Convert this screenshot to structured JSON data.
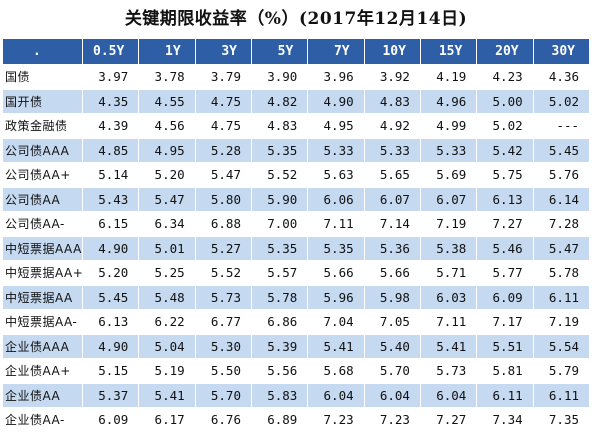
{
  "title": "关键期限收益率（%）(2017年12月14日)",
  "table": {
    "corner": ".",
    "headers": [
      "0.5Y",
      "1Y",
      "3Y",
      "5Y",
      "7Y",
      "10Y",
      "15Y",
      "20Y",
      "30Y"
    ],
    "rows": [
      {
        "name": "国债",
        "values": [
          "3.97",
          "3.78",
          "3.79",
          "3.90",
          "3.96",
          "3.92",
          "4.19",
          "4.23",
          "4.36"
        ]
      },
      {
        "name": "国开债",
        "values": [
          "4.35",
          "4.55",
          "4.75",
          "4.82",
          "4.90",
          "4.83",
          "4.96",
          "5.00",
          "5.02"
        ]
      },
      {
        "name": "政策金融债",
        "values": [
          "4.39",
          "4.56",
          "4.75",
          "4.83",
          "4.95",
          "4.92",
          "4.99",
          "5.02",
          "---"
        ]
      },
      {
        "name": "公司债AAA",
        "values": [
          "4.85",
          "4.95",
          "5.28",
          "5.35",
          "5.33",
          "5.33",
          "5.33",
          "5.42",
          "5.45"
        ]
      },
      {
        "name": "公司债AA+",
        "values": [
          "5.14",
          "5.20",
          "5.47",
          "5.52",
          "5.63",
          "5.65",
          "5.69",
          "5.75",
          "5.76"
        ]
      },
      {
        "name": "公司债AA",
        "values": [
          "5.43",
          "5.47",
          "5.80",
          "5.90",
          "6.06",
          "6.07",
          "6.07",
          "6.13",
          "6.14"
        ]
      },
      {
        "name": "公司债AA-",
        "values": [
          "6.15",
          "6.34",
          "6.88",
          "7.00",
          "7.11",
          "7.14",
          "7.19",
          "7.27",
          "7.28"
        ]
      },
      {
        "name": "中短票据AAA",
        "values": [
          "4.90",
          "5.01",
          "5.27",
          "5.35",
          "5.35",
          "5.36",
          "5.38",
          "5.46",
          "5.47"
        ]
      },
      {
        "name": "中短票据AA+",
        "values": [
          "5.20",
          "5.25",
          "5.52",
          "5.57",
          "5.66",
          "5.66",
          "5.71",
          "5.77",
          "5.78"
        ]
      },
      {
        "name": "中短票据AA",
        "values": [
          "5.45",
          "5.48",
          "5.73",
          "5.78",
          "5.96",
          "5.98",
          "6.03",
          "6.09",
          "6.11"
        ]
      },
      {
        "name": "中短票据AA-",
        "values": [
          "6.13",
          "6.22",
          "6.77",
          "6.86",
          "7.04",
          "7.05",
          "7.11",
          "7.17",
          "7.19"
        ]
      },
      {
        "name": "企业债AAA",
        "values": [
          "4.90",
          "5.04",
          "5.30",
          "5.39",
          "5.41",
          "5.40",
          "5.41",
          "5.51",
          "5.54"
        ]
      },
      {
        "name": "企业债AA+",
        "values": [
          "5.15",
          "5.19",
          "5.50",
          "5.56",
          "5.68",
          "5.70",
          "5.73",
          "5.81",
          "5.79"
        ]
      },
      {
        "name": "企业债AA",
        "values": [
          "5.37",
          "5.41",
          "5.70",
          "5.83",
          "6.04",
          "6.04",
          "6.04",
          "6.11",
          "6.11"
        ]
      },
      {
        "name": "企业债AA-",
        "values": [
          "6.09",
          "6.17",
          "6.76",
          "6.89",
          "7.23",
          "7.23",
          "7.27",
          "7.34",
          "7.35"
        ]
      }
    ]
  }
}
